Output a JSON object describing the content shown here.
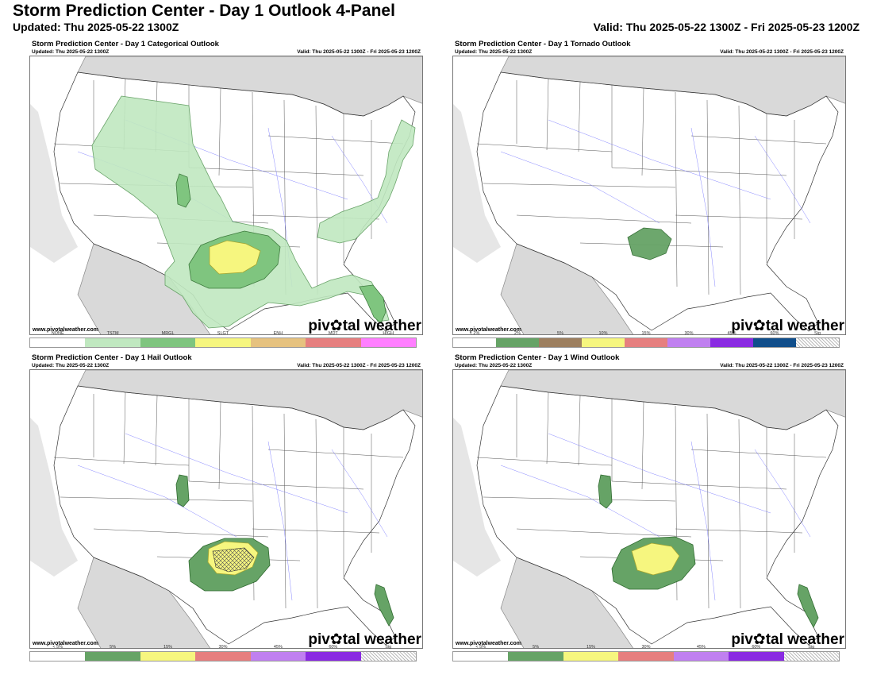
{
  "header": {
    "title": "Storm Prediction Center - Day 1 Outlook 4-Panel",
    "updated": "Updated: Thu 2025-05-22 1300Z",
    "valid": "Valid: Thu 2025-05-22 1300Z - Fri 2025-05-23 1200Z"
  },
  "panels": [
    {
      "title": "Storm Prediction Center - Day 1 Categorical Outlook",
      "updated": "Updated: Thu 2025-05-22 1300Z",
      "valid": "Valid: Thu 2025-05-22 1300Z - Fri 2025-05-23 1200Z",
      "url": "www.pivotalweather.com",
      "brand": "piv✿tal weather",
      "legend": [
        {
          "label": "NONE",
          "color": "#ffffff"
        },
        {
          "label": "TSTM",
          "color": "#c0e8c0"
        },
        {
          "label": "MRGL",
          "color": "#7fc57f"
        },
        {
          "label": "SLGT",
          "color": "#f6f67f"
        },
        {
          "label": "ENH",
          "color": "#e6c27f"
        },
        {
          "label": "MDT",
          "color": "#e67f7f"
        },
        {
          "label": "HIGH",
          "color": "#ff7fff"
        }
      ]
    },
    {
      "title": "Storm Prediction Center - Day 1 Tornado Outlook",
      "updated": "Updated: Thu 2025-05-22 1300Z",
      "valid": "Valid: Thu 2025-05-22 1300Z - Fri 2025-05-23 1200Z",
      "url": "www.pivotalweather.com",
      "brand": "piv✿tal weather",
      "legend": [
        {
          "label": "< 2%",
          "color": "#ffffff"
        },
        {
          "label": "2%",
          "color": "#66a366"
        },
        {
          "label": "5%",
          "color": "#9d7f5f"
        },
        {
          "label": "10%",
          "color": "#f6f67f"
        },
        {
          "label": "15%",
          "color": "#e67f7f"
        },
        {
          "label": "30%",
          "color": "#c080f0"
        },
        {
          "label": "45%",
          "color": "#8a2be2"
        },
        {
          "label": "60%",
          "color": "#104e8b"
        },
        {
          "label": "Sig",
          "color": "hatch"
        }
      ]
    },
    {
      "title": "Storm Prediction Center - Day 1 Hail Outlook",
      "updated": "Updated: Thu 2025-05-22 1300Z",
      "valid": "Valid: Thu 2025-05-22 1300Z - Fri 2025-05-23 1200Z",
      "url": "www.pivotalweather.com",
      "brand": "piv✿tal weather",
      "legend": [
        {
          "label": "< 5%",
          "color": "#ffffff"
        },
        {
          "label": "5%",
          "color": "#66a366"
        },
        {
          "label": "15%",
          "color": "#f6f67f"
        },
        {
          "label": "30%",
          "color": "#e67f7f"
        },
        {
          "label": "45%",
          "color": "#c080f0"
        },
        {
          "label": "60%",
          "color": "#8a2be2"
        },
        {
          "label": "Sig",
          "color": "hatch"
        }
      ]
    },
    {
      "title": "Storm Prediction Center - Day 1 Wind Outlook",
      "updated": "Updated: Thu 2025-05-22 1300Z",
      "valid": "Valid: Thu 2025-05-22 1300Z - Fri 2025-05-23 1200Z",
      "url": "www.pivotalweather.com",
      "brand": "piv✿tal weather",
      "legend": [
        {
          "label": "< 5%",
          "color": "#ffffff"
        },
        {
          "label": "5%",
          "color": "#66a366"
        },
        {
          "label": "15%",
          "color": "#f6f67f"
        },
        {
          "label": "30%",
          "color": "#e67f7f"
        },
        {
          "label": "45%",
          "color": "#c080f0"
        },
        {
          "label": "60%",
          "color": "#8a2be2"
        },
        {
          "label": "Sig",
          "color": "hatch"
        }
      ]
    }
  ]
}
